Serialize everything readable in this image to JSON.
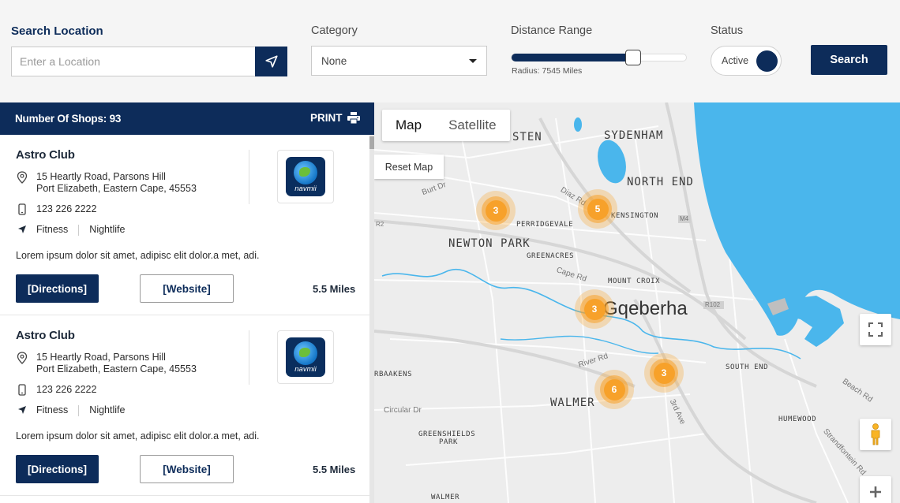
{
  "filters": {
    "location": {
      "label": "Search Location",
      "placeholder": "Enter a Location",
      "value": ""
    },
    "category": {
      "label": "Category",
      "selected": "None"
    },
    "distance": {
      "label": "Distance Range",
      "radius_text": "Radius: 7545 Miles",
      "level": 0.69
    },
    "status": {
      "label": "Status",
      "value": "Active"
    },
    "search_label": "Search"
  },
  "list": {
    "header": "Number Of Shops: 93",
    "print_label": "PRINT",
    "shops": [
      {
        "name": "Astro Club",
        "address_line1": "15 Heartly Road, Parsons Hill",
        "address_line2": "Port Elizabeth, Eastern Cape, 45553",
        "phone": "123 226 2222",
        "tags": [
          "Fitness",
          "Nightlife"
        ],
        "description": "Lorem ipsum dolor sit amet, adipisc elit dolor.a met, adi.",
        "directions_label": "[Directions]",
        "website_label": "[Website]",
        "distance": "5.5 Miles",
        "logo_text": "navmii"
      },
      {
        "name": "Astro Club",
        "address_line1": "15 Heartly Road, Parsons Hill",
        "address_line2": "Port Elizabeth, Eastern Cape, 45553",
        "phone": "123 226 2222",
        "tags": [
          "Fitness",
          "Nightlife"
        ],
        "description": "Lorem ipsum dolor sit amet, adipisc elit dolor.a met, adi.",
        "directions_label": "[Directions]",
        "website_label": "[Website]",
        "distance": "5.5 Miles",
        "logo_text": "navmii"
      }
    ]
  },
  "map": {
    "type_buttons": [
      "Map",
      "Satellite"
    ],
    "active_type": "Map",
    "reset_label": "Reset Map",
    "city": "Gqeberha",
    "areas": [
      "STEN",
      "SYDENHAM",
      "NORTH END",
      "KENSINGTON",
      "PERRIDGEVALE",
      "NEWTON PARK",
      "GREENACRES",
      "MOUNT CROIX",
      "RBAAKENS",
      "SOUTH END",
      "WALMER",
      "HUMEWOOD",
      "GREENSHIELDS",
      "PARK",
      "WALMER"
    ],
    "roads": [
      "Burt Dr",
      "Diaz Rd",
      "Cape Rd",
      "River Rd",
      "Circular Dr",
      "3rd Ave",
      "Beach Rd",
      "Strandfontein Rd",
      "M4",
      "R102",
      "R2"
    ],
    "clusters": [
      3,
      5,
      3,
      3,
      6
    ],
    "colors": {
      "water": "#4ab6ec",
      "cluster": "#f7a12a",
      "brand": "#0d2c5a"
    },
    "controls": [
      "fullscreen-icon",
      "pegman-icon",
      "zoom-in-icon"
    ]
  }
}
